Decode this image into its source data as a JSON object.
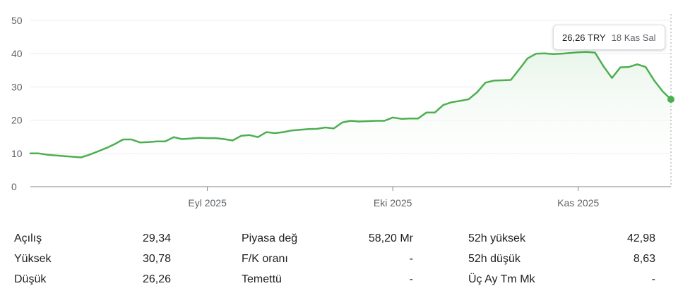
{
  "chart_data": {
    "type": "area",
    "y_ticks": [
      "50",
      "40",
      "30",
      "20",
      "10",
      "0"
    ],
    "x_tick_labels": [
      "Eyl 2025",
      "Eki 2025",
      "Kas 2025"
    ],
    "ylim": [
      0,
      50
    ],
    "grid": true,
    "line_color": "#4caf50",
    "fill_color": "#e8f5e9",
    "series": [
      {
        "values": [
          10.0,
          10.0,
          9.6,
          9.4,
          9.2,
          9.0,
          8.8,
          9.6,
          10.6,
          11.6,
          12.8,
          14.2,
          14.2,
          13.3,
          13.4,
          13.6,
          13.6,
          14.9,
          14.3,
          14.5,
          14.7,
          14.6,
          14.6,
          14.3,
          13.9,
          15.3,
          15.5,
          14.9,
          16.4,
          16.1,
          16.4,
          16.9,
          17.1,
          17.3,
          17.4,
          17.8,
          17.5,
          19.3,
          19.8,
          19.6,
          19.7,
          19.8,
          19.8,
          20.8,
          20.4,
          20.5,
          20.5,
          22.3,
          22.3,
          24.6,
          25.4,
          25.8,
          26.3,
          28.4,
          31.3,
          31.9,
          32.0,
          32.1,
          35.3,
          38.6,
          40.0,
          40.1,
          39.9,
          40.0,
          40.2,
          40.4,
          40.5,
          40.3,
          36.2,
          32.7,
          35.9,
          36.0,
          36.8,
          36.0,
          32.0,
          28.7,
          26.26
        ]
      }
    ],
    "tooltip": {
      "price": "26,26 TRY",
      "date": "18 Kas Sal"
    }
  },
  "stats": {
    "col1": [
      {
        "label": "Açılış",
        "value": "29,34"
      },
      {
        "label": "Yüksek",
        "value": "30,78"
      },
      {
        "label": "Düşük",
        "value": "26,26"
      }
    ],
    "col2": [
      {
        "label": "Piyasa değ",
        "value": "58,20 Mr"
      },
      {
        "label": "F/K oranı",
        "value": "-"
      },
      {
        "label": "Temettü",
        "value": "-"
      }
    ],
    "col3": [
      {
        "label": "52h yüksek",
        "value": "42,98"
      },
      {
        "label": "52h düşük",
        "value": "8,63"
      },
      {
        "label": "Üç Ay Tm Mk",
        "value": "-"
      }
    ]
  }
}
